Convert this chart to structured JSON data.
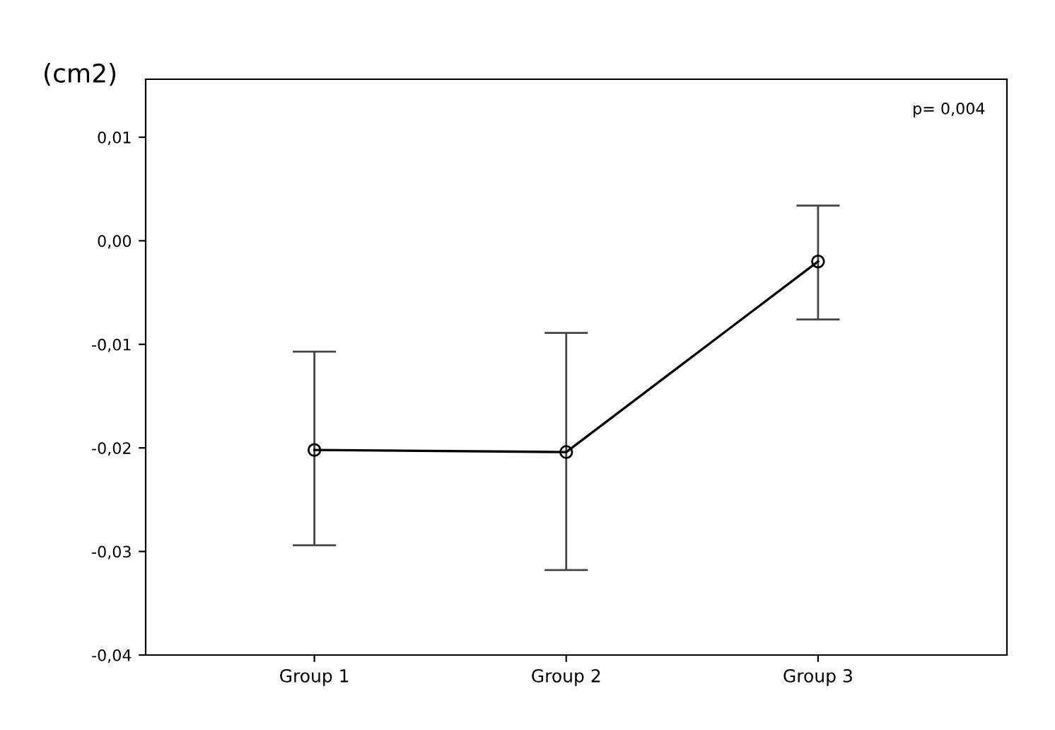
{
  "chart_data": {
    "type": "line",
    "ylabel": "(cm2)",
    "categories": [
      "Group 1",
      "Group 2",
      "Group 3"
    ],
    "series": [
      {
        "color": "#000000",
        "values": [
          -0.0202,
          -0.0204,
          -0.002
        ],
        "errors": [
          [
            -0.0294,
            -0.0107
          ],
          [
            -0.0318,
            -0.0089
          ],
          [
            -0.0076,
            0.0034
          ]
        ]
      }
    ],
    "ylim": [
      -0.04,
      0.0156
    ],
    "yticks": [
      {
        "value": -0.04,
        "label": "-0,04"
      },
      {
        "value": -0.03,
        "label": "-0,03"
      },
      {
        "value": -0.02,
        "label": "-0,02"
      },
      {
        "value": -0.01,
        "label": "-0,01"
      },
      {
        "value": 0.0,
        "label": "0,00"
      },
      {
        "value": 0.01,
        "label": "0,01"
      }
    ],
    "annotations": [
      "p= 0,004"
    ],
    "marker": "circle",
    "line_style": "solid",
    "grid": false,
    "legend": false
  }
}
